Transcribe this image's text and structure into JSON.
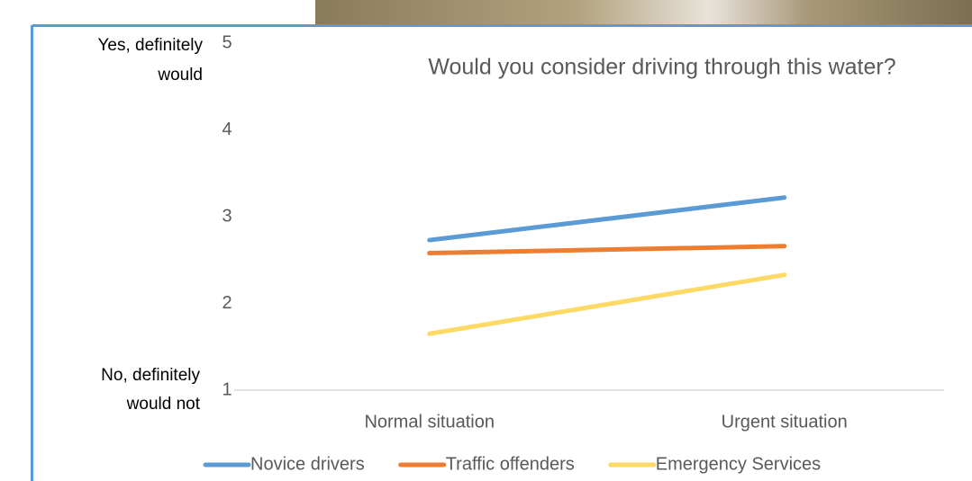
{
  "chart_data": {
    "type": "line",
    "title": "Would you consider driving through this water?",
    "y_top_label": [
      "Yes, definitely",
      "would"
    ],
    "y_bottom_label": [
      "No, definitely",
      "would not"
    ],
    "categories": [
      "Normal situation",
      "Urgent situation"
    ],
    "series": [
      {
        "name": "Novice drivers",
        "color": "#5b9bd5",
        "values": [
          2.73,
          3.22
        ]
      },
      {
        "name": "Traffic offenders",
        "color": "#ed7d31",
        "values": [
          2.58,
          2.66
        ]
      },
      {
        "name": "Emergency Services",
        "color": "#ffd966",
        "values": [
          1.65,
          2.33
        ]
      }
    ],
    "ylim": [
      1,
      5
    ],
    "yticks": [
      1,
      2,
      3,
      4,
      5
    ],
    "grid": false,
    "legend": "bottom"
  }
}
